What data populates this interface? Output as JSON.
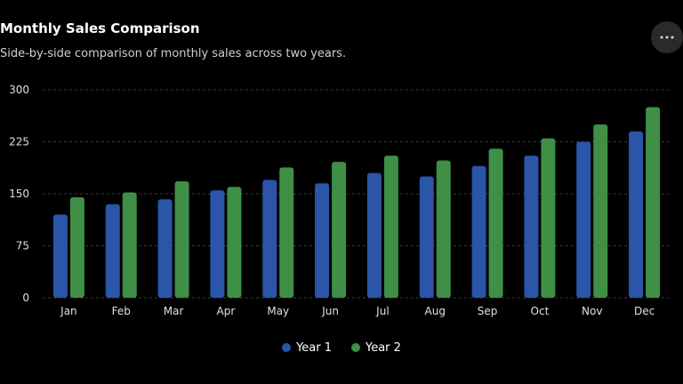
{
  "header": {
    "title": "Monthly Sales Comparison",
    "subtitle": "Side-by-side comparison of monthly sales across two years."
  },
  "more_menu": {
    "icon": "more-horizontal-icon"
  },
  "colors": {
    "background": "#000000",
    "gridline": "#3a3a3a",
    "tick_text": "#e0e0e0",
    "year1": "#2a55a8",
    "year2": "#3f8f47"
  },
  "chart_data": {
    "type": "bar",
    "title": "Monthly Sales Comparison",
    "subtitle": "Side-by-side comparison of monthly sales across two years.",
    "xlabel": "",
    "ylabel": "",
    "categories": [
      "Jan",
      "Feb",
      "Mar",
      "Apr",
      "May",
      "Jun",
      "Jul",
      "Aug",
      "Sep",
      "Oct",
      "Nov",
      "Dec"
    ],
    "ylim": [
      0,
      300
    ],
    "yticks": [
      "0",
      "75",
      "150",
      "225",
      "300"
    ],
    "grid": true,
    "legend_position": "bottom-center",
    "series": [
      {
        "name": "Year 1",
        "color": "#2a55a8",
        "values": [
          120,
          135,
          142,
          155,
          170,
          165,
          180,
          175,
          190,
          205,
          225,
          240
        ]
      },
      {
        "name": "Year 2",
        "color": "#3f8f47",
        "values": [
          145,
          152,
          168,
          160,
          188,
          196,
          205,
          198,
          215,
          230,
          250,
          275
        ]
      }
    ]
  }
}
